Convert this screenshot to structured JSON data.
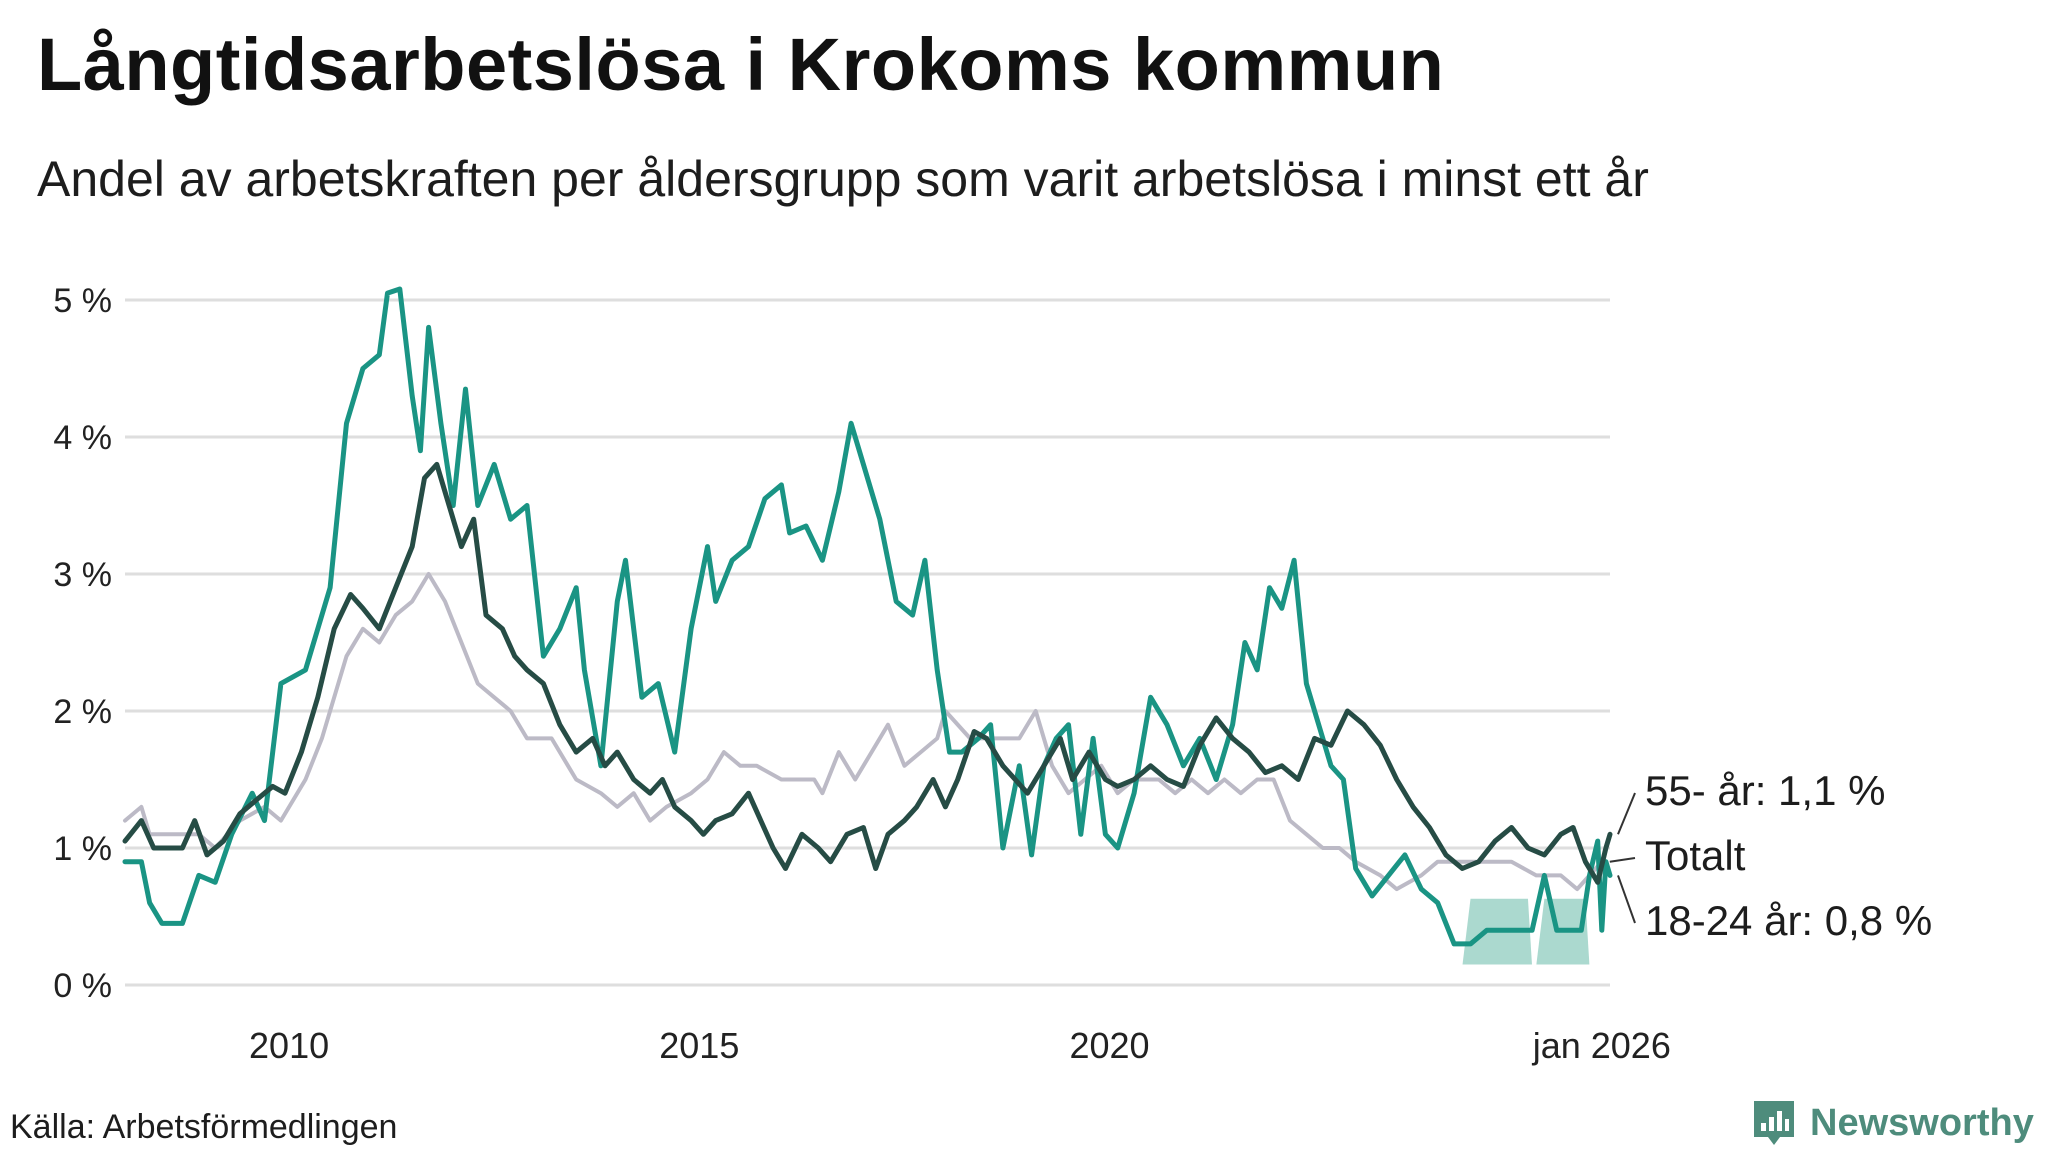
{
  "title": "Långtidsarbetslösa i Krokoms kommun",
  "subtitle": "Andel av arbetskraften per åldersgrupp som varit arbetslösa i minst ett år",
  "source": "Källa: Arbetsförmedlingen",
  "brand": "Newsworthy",
  "colors": {
    "young": "#1a9484",
    "old": "#264c45",
    "total": "#bcbac6",
    "band": "#a6d7cc",
    "grid": "#dedede",
    "axis_text": "#222222"
  },
  "chart_data": {
    "type": "line",
    "title": "Långtidsarbetslösa i Krokoms kommun",
    "xlabel": "",
    "ylabel": "",
    "x_range": [
      2008.0,
      2026.1
    ],
    "ylim": [
      0,
      5.2
    ],
    "y_ticks": [
      0,
      1,
      2,
      3,
      4,
      5
    ],
    "y_tick_labels": [
      "0 %",
      "1 %",
      "2 %",
      "3 %",
      "4 %",
      "5 %"
    ],
    "x_ticks": [
      2010,
      2015,
      2020,
      2026.0
    ],
    "x_tick_labels": [
      "2010",
      "2015",
      "2020",
      "jan 2026"
    ],
    "grid": true,
    "series": [
      {
        "name": "Totalt",
        "label": "Totalt",
        "color_key": "total",
        "points": [
          [
            2008.0,
            1.2
          ],
          [
            2008.2,
            1.3
          ],
          [
            2008.3,
            1.1
          ],
          [
            2008.6,
            1.1
          ],
          [
            2008.9,
            1.1
          ],
          [
            2009.1,
            1.0
          ],
          [
            2009.4,
            1.2
          ],
          [
            2009.7,
            1.3
          ],
          [
            2009.9,
            1.2
          ],
          [
            2010.2,
            1.5
          ],
          [
            2010.4,
            1.8
          ],
          [
            2010.6,
            2.2
          ],
          [
            2010.7,
            2.4
          ],
          [
            2010.9,
            2.6
          ],
          [
            2011.1,
            2.5
          ],
          [
            2011.3,
            2.7
          ],
          [
            2011.5,
            2.8
          ],
          [
            2011.7,
            3.0
          ],
          [
            2011.9,
            2.8
          ],
          [
            2012.1,
            2.5
          ],
          [
            2012.3,
            2.2
          ],
          [
            2012.5,
            2.1
          ],
          [
            2012.7,
            2.0
          ],
          [
            2012.9,
            1.8
          ],
          [
            2013.2,
            1.8
          ],
          [
            2013.4,
            1.6
          ],
          [
            2013.5,
            1.5
          ],
          [
            2013.8,
            1.4
          ],
          [
            2014.0,
            1.3
          ],
          [
            2014.2,
            1.4
          ],
          [
            2014.4,
            1.2
          ],
          [
            2014.6,
            1.3
          ],
          [
            2014.9,
            1.4
          ],
          [
            2015.1,
            1.5
          ],
          [
            2015.3,
            1.7
          ],
          [
            2015.5,
            1.6
          ],
          [
            2015.7,
            1.6
          ],
          [
            2016.0,
            1.5
          ],
          [
            2016.2,
            1.5
          ],
          [
            2016.4,
            1.5
          ],
          [
            2016.5,
            1.4
          ],
          [
            2016.7,
            1.7
          ],
          [
            2016.9,
            1.5
          ],
          [
            2017.1,
            1.7
          ],
          [
            2017.3,
            1.9
          ],
          [
            2017.5,
            1.6
          ],
          [
            2017.7,
            1.7
          ],
          [
            2017.9,
            1.8
          ],
          [
            2018.0,
            2.0
          ],
          [
            2018.3,
            1.8
          ],
          [
            2018.6,
            1.8
          ],
          [
            2018.9,
            1.8
          ],
          [
            2019.1,
            2.0
          ],
          [
            2019.3,
            1.6
          ],
          [
            2019.5,
            1.4
          ],
          [
            2019.7,
            1.5
          ],
          [
            2019.9,
            1.6
          ],
          [
            2020.1,
            1.4
          ],
          [
            2020.3,
            1.5
          ],
          [
            2020.6,
            1.5
          ],
          [
            2020.8,
            1.4
          ],
          [
            2021.0,
            1.5
          ],
          [
            2021.2,
            1.4
          ],
          [
            2021.4,
            1.5
          ],
          [
            2021.6,
            1.4
          ],
          [
            2021.8,
            1.5
          ],
          [
            2022.0,
            1.5
          ],
          [
            2022.2,
            1.2
          ],
          [
            2022.4,
            1.1
          ],
          [
            2022.6,
            1.0
          ],
          [
            2022.8,
            1.0
          ],
          [
            2023.0,
            0.9
          ],
          [
            2023.3,
            0.8
          ],
          [
            2023.5,
            0.7
          ],
          [
            2023.8,
            0.8
          ],
          [
            2024.0,
            0.9
          ],
          [
            2024.3,
            0.9
          ],
          [
            2024.6,
            0.9
          ],
          [
            2024.9,
            0.9
          ],
          [
            2025.2,
            0.8
          ],
          [
            2025.5,
            0.8
          ],
          [
            2025.7,
            0.7
          ],
          [
            2026.0,
            0.9
          ]
        ]
      },
      {
        "name": "18-24 år",
        "label": "18-24 år: 0,8 %",
        "color_key": "young",
        "points": [
          [
            2008.0,
            0.9
          ],
          [
            2008.2,
            0.9
          ],
          [
            2008.3,
            0.6
          ],
          [
            2008.45,
            0.45
          ],
          [
            2008.7,
            0.45
          ],
          [
            2008.9,
            0.8
          ],
          [
            2009.1,
            0.75
          ],
          [
            2009.3,
            1.1
          ],
          [
            2009.55,
            1.4
          ],
          [
            2009.7,
            1.2
          ],
          [
            2009.9,
            2.2
          ],
          [
            2010.2,
            2.3
          ],
          [
            2010.5,
            2.9
          ],
          [
            2010.7,
            4.1
          ],
          [
            2010.9,
            4.5
          ],
          [
            2011.1,
            4.6
          ],
          [
            2011.2,
            5.05
          ],
          [
            2011.35,
            5.08
          ],
          [
            2011.5,
            4.3
          ],
          [
            2011.6,
            3.9
          ],
          [
            2011.7,
            4.8
          ],
          [
            2011.85,
            4.1
          ],
          [
            2012.0,
            3.5
          ],
          [
            2012.15,
            4.35
          ],
          [
            2012.3,
            3.5
          ],
          [
            2012.5,
            3.8
          ],
          [
            2012.7,
            3.4
          ],
          [
            2012.9,
            3.5
          ],
          [
            2013.1,
            2.4
          ],
          [
            2013.3,
            2.6
          ],
          [
            2013.5,
            2.9
          ],
          [
            2013.6,
            2.3
          ],
          [
            2013.8,
            1.6
          ],
          [
            2014.0,
            2.8
          ],
          [
            2014.1,
            3.1
          ],
          [
            2014.3,
            2.1
          ],
          [
            2014.5,
            2.2
          ],
          [
            2014.7,
            1.7
          ],
          [
            2014.9,
            2.6
          ],
          [
            2015.1,
            3.2
          ],
          [
            2015.2,
            2.8
          ],
          [
            2015.4,
            3.1
          ],
          [
            2015.6,
            3.2
          ],
          [
            2015.8,
            3.55
          ],
          [
            2016.0,
            3.65
          ],
          [
            2016.1,
            3.3
          ],
          [
            2016.3,
            3.35
          ],
          [
            2016.5,
            3.1
          ],
          [
            2016.7,
            3.6
          ],
          [
            2016.85,
            4.1
          ],
          [
            2017.0,
            3.8
          ],
          [
            2017.2,
            3.4
          ],
          [
            2017.4,
            2.8
          ],
          [
            2017.6,
            2.7
          ],
          [
            2017.75,
            3.1
          ],
          [
            2017.9,
            2.3
          ],
          [
            2018.05,
            1.7
          ],
          [
            2018.2,
            1.7
          ],
          [
            2018.4,
            1.8
          ],
          [
            2018.55,
            1.9
          ],
          [
            2018.7,
            1.0
          ],
          [
            2018.9,
            1.6
          ],
          [
            2019.05,
            0.95
          ],
          [
            2019.2,
            1.6
          ],
          [
            2019.35,
            1.8
          ],
          [
            2019.5,
            1.9
          ],
          [
            2019.65,
            1.1
          ],
          [
            2019.8,
            1.8
          ],
          [
            2019.95,
            1.1
          ],
          [
            2020.1,
            1.0
          ],
          [
            2020.3,
            1.4
          ],
          [
            2020.5,
            2.1
          ],
          [
            2020.7,
            1.9
          ],
          [
            2020.9,
            1.6
          ],
          [
            2021.1,
            1.8
          ],
          [
            2021.3,
            1.5
          ],
          [
            2021.5,
            1.9
          ],
          [
            2021.65,
            2.5
          ],
          [
            2021.8,
            2.3
          ],
          [
            2021.95,
            2.9
          ],
          [
            2022.1,
            2.75
          ],
          [
            2022.25,
            3.1
          ],
          [
            2022.4,
            2.2
          ],
          [
            2022.55,
            1.9
          ],
          [
            2022.7,
            1.6
          ],
          [
            2022.85,
            1.5
          ],
          [
            2023.0,
            0.85
          ],
          [
            2023.2,
            0.65
          ],
          [
            2023.4,
            0.8
          ],
          [
            2023.6,
            0.95
          ],
          [
            2023.8,
            0.7
          ],
          [
            2024.0,
            0.6
          ],
          [
            2024.2,
            0.3
          ],
          [
            2024.4,
            0.3
          ],
          [
            2024.6,
            0.4
          ],
          [
            2024.8,
            0.4
          ],
          [
            2025.0,
            0.4
          ],
          [
            2025.15,
            0.4
          ],
          [
            2025.3,
            0.8
          ],
          [
            2025.45,
            0.4
          ],
          [
            2025.6,
            0.4
          ],
          [
            2025.75,
            0.4
          ],
          [
            2025.85,
            0.8
          ],
          [
            2025.95,
            1.05
          ],
          [
            2026.0,
            0.4
          ],
          [
            2026.05,
            0.9
          ],
          [
            2026.1,
            0.8
          ]
        ]
      },
      {
        "name": "55- år",
        "label": "55- år: 1,1 %",
        "color_key": "old",
        "points": [
          [
            2008.0,
            1.05
          ],
          [
            2008.2,
            1.2
          ],
          [
            2008.35,
            1.0
          ],
          [
            2008.5,
            1.0
          ],
          [
            2008.7,
            1.0
          ],
          [
            2008.85,
            1.2
          ],
          [
            2009.0,
            0.95
          ],
          [
            2009.2,
            1.05
          ],
          [
            2009.4,
            1.25
          ],
          [
            2009.6,
            1.35
          ],
          [
            2009.8,
            1.45
          ],
          [
            2009.95,
            1.4
          ],
          [
            2010.15,
            1.7
          ],
          [
            2010.35,
            2.1
          ],
          [
            2010.55,
            2.6
          ],
          [
            2010.75,
            2.85
          ],
          [
            2010.9,
            2.75
          ],
          [
            2011.1,
            2.6
          ],
          [
            2011.3,
            2.9
          ],
          [
            2011.5,
            3.2
          ],
          [
            2011.65,
            3.7
          ],
          [
            2011.8,
            3.8
          ],
          [
            2011.95,
            3.5
          ],
          [
            2012.1,
            3.2
          ],
          [
            2012.25,
            3.4
          ],
          [
            2012.4,
            2.7
          ],
          [
            2012.6,
            2.6
          ],
          [
            2012.75,
            2.4
          ],
          [
            2012.9,
            2.3
          ],
          [
            2013.1,
            2.2
          ],
          [
            2013.3,
            1.9
          ],
          [
            2013.5,
            1.7
          ],
          [
            2013.7,
            1.8
          ],
          [
            2013.85,
            1.6
          ],
          [
            2014.0,
            1.7
          ],
          [
            2014.2,
            1.5
          ],
          [
            2014.4,
            1.4
          ],
          [
            2014.55,
            1.5
          ],
          [
            2014.7,
            1.3
          ],
          [
            2014.9,
            1.2
          ],
          [
            2015.05,
            1.1
          ],
          [
            2015.2,
            1.2
          ],
          [
            2015.4,
            1.25
          ],
          [
            2015.6,
            1.4
          ],
          [
            2015.75,
            1.2
          ],
          [
            2015.9,
            1.0
          ],
          [
            2016.05,
            0.85
          ],
          [
            2016.25,
            1.1
          ],
          [
            2016.45,
            1.0
          ],
          [
            2016.6,
            0.9
          ],
          [
            2016.8,
            1.1
          ],
          [
            2017.0,
            1.15
          ],
          [
            2017.15,
            0.85
          ],
          [
            2017.3,
            1.1
          ],
          [
            2017.5,
            1.2
          ],
          [
            2017.65,
            1.3
          ],
          [
            2017.85,
            1.5
          ],
          [
            2018.0,
            1.3
          ],
          [
            2018.15,
            1.5
          ],
          [
            2018.35,
            1.85
          ],
          [
            2018.5,
            1.8
          ],
          [
            2018.7,
            1.6
          ],
          [
            2018.85,
            1.5
          ],
          [
            2019.0,
            1.4
          ],
          [
            2019.2,
            1.6
          ],
          [
            2019.4,
            1.8
          ],
          [
            2019.55,
            1.5
          ],
          [
            2019.75,
            1.7
          ],
          [
            2019.95,
            1.5
          ],
          [
            2020.1,
            1.45
          ],
          [
            2020.3,
            1.5
          ],
          [
            2020.5,
            1.6
          ],
          [
            2020.7,
            1.5
          ],
          [
            2020.9,
            1.45
          ],
          [
            2021.1,
            1.75
          ],
          [
            2021.3,
            1.95
          ],
          [
            2021.5,
            1.8
          ],
          [
            2021.7,
            1.7
          ],
          [
            2021.9,
            1.55
          ],
          [
            2022.1,
            1.6
          ],
          [
            2022.3,
            1.5
          ],
          [
            2022.5,
            1.8
          ],
          [
            2022.7,
            1.75
          ],
          [
            2022.9,
            2.0
          ],
          [
            2023.1,
            1.9
          ],
          [
            2023.3,
            1.75
          ],
          [
            2023.5,
            1.5
          ],
          [
            2023.7,
            1.3
          ],
          [
            2023.9,
            1.15
          ],
          [
            2024.1,
            0.95
          ],
          [
            2024.3,
            0.85
          ],
          [
            2024.5,
            0.9
          ],
          [
            2024.7,
            1.05
          ],
          [
            2024.9,
            1.15
          ],
          [
            2025.1,
            1.0
          ],
          [
            2025.3,
            0.95
          ],
          [
            2025.5,
            1.1
          ],
          [
            2025.65,
            1.15
          ],
          [
            2025.8,
            0.9
          ],
          [
            2025.95,
            0.75
          ],
          [
            2026.05,
            1.0
          ],
          [
            2026.1,
            1.1
          ]
        ]
      }
    ],
    "uncertainty_band": {
      "series": "18-24 år",
      "ranges": [
        {
          "x0": 2024.4,
          "x1": 2025.1,
          "y0": 0.15,
          "y1": 0.63
        },
        {
          "x0": 2025.3,
          "x1": 2025.8,
          "y0": 0.15,
          "y1": 0.63
        }
      ]
    }
  }
}
